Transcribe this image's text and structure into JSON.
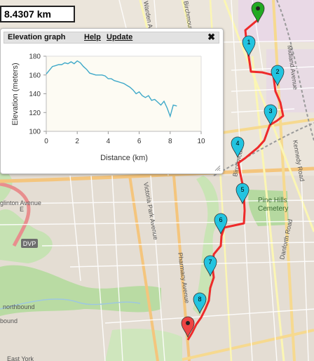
{
  "distance_label": "8.4307 km",
  "panel": {
    "title": "Elevation graph",
    "help": "Help",
    "update": "Update",
    "close_symbol": "✖"
  },
  "chart_data": {
    "type": "area",
    "xlabel": "Distance (km)",
    "ylabel": "Elevation (meters)",
    "xlim": [
      0,
      10
    ],
    "ylim": [
      100,
      180
    ],
    "xticks": [
      "0",
      "2",
      "4",
      "6",
      "8",
      "10"
    ],
    "yticks": [
      "100",
      "120",
      "140",
      "160",
      "180"
    ],
    "grid": false,
    "series_color": "#3fa9c9",
    "x": [
      0,
      0.2,
      0.4,
      0.6,
      0.8,
      1.0,
      1.2,
      1.4,
      1.6,
      1.8,
      2.0,
      2.2,
      2.4,
      2.6,
      2.8,
      3.0,
      3.2,
      3.4,
      3.6,
      3.8,
      4.0,
      4.2,
      4.4,
      4.6,
      4.8,
      5.0,
      5.2,
      5.4,
      5.6,
      5.8,
      6.0,
      6.2,
      6.4,
      6.6,
      6.8,
      7.0,
      7.2,
      7.4,
      7.6,
      7.8,
      8.0,
      8.2,
      8.43
    ],
    "y": [
      161,
      165,
      169,
      170,
      171,
      171,
      173,
      172,
      174,
      172,
      175,
      173,
      169,
      166,
      162,
      161,
      160,
      160,
      160,
      159,
      156,
      156,
      154,
      153,
      152,
      151,
      149,
      147,
      144,
      140,
      142,
      138,
      136,
      138,
      133,
      134,
      131,
      128,
      132,
      125,
      116,
      128,
      127
    ]
  },
  "markers": [
    "1",
    "2",
    "3",
    "4",
    "5",
    "6",
    "7",
    "8"
  ],
  "map_labels": {
    "eglinton": "Eglinton Avenue",
    "eglinton2": "glinton Avenue",
    "eglinton_e": "E",
    "dvp": "DVP",
    "northbound": "northbound",
    "bound": "bound",
    "victoria_park": "Victoria Park Avenue",
    "pharmacy": "Pharmacy Avenue",
    "kennedy": "Kennedy Road",
    "midland": "Midland Avenue",
    "danforth": "Danforth Road",
    "pine_hills_1": "Pine Hills",
    "pine_hills_2": "Cemetery",
    "birchmount": "Birchmount",
    "warden": "Warden Avenue",
    "birchmount_top": "Birchmount Road",
    "east_york": "East York"
  },
  "colors": {
    "route": "#ee2222",
    "marker_blue": "#22c4e0",
    "marker_green": "#22aa22",
    "marker_red": "#ee4444",
    "park": "#b8dca0",
    "residential": "#e3dbd4",
    "road_major": "#f8c987",
    "road_yellow": "#fbf7b5"
  }
}
